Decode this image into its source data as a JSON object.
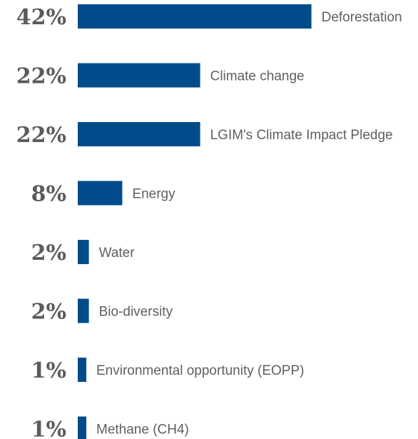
{
  "chart_data": {
    "type": "bar",
    "orientation": "horizontal",
    "categories": [
      "Deforestation",
      "Climate change",
      "LGIM's Climate Impact Pledge",
      "Energy",
      "Water",
      "Bio-diversity",
      "Environmental opportunity (EOPP)",
      "Methane (CH4)"
    ],
    "values": [
      42,
      22,
      22,
      8,
      2,
      2,
      1,
      1
    ],
    "value_labels": [
      "42%",
      "22%",
      "22%",
      "8%",
      "2%",
      "2%",
      "1%",
      "1%"
    ],
    "bar_color": "#004c8a",
    "value_label_color": "#5b5b5b",
    "category_label_color": "#5f5f5f",
    "title": "",
    "xlabel": "",
    "ylabel": "",
    "grid": false,
    "legend": "none"
  }
}
